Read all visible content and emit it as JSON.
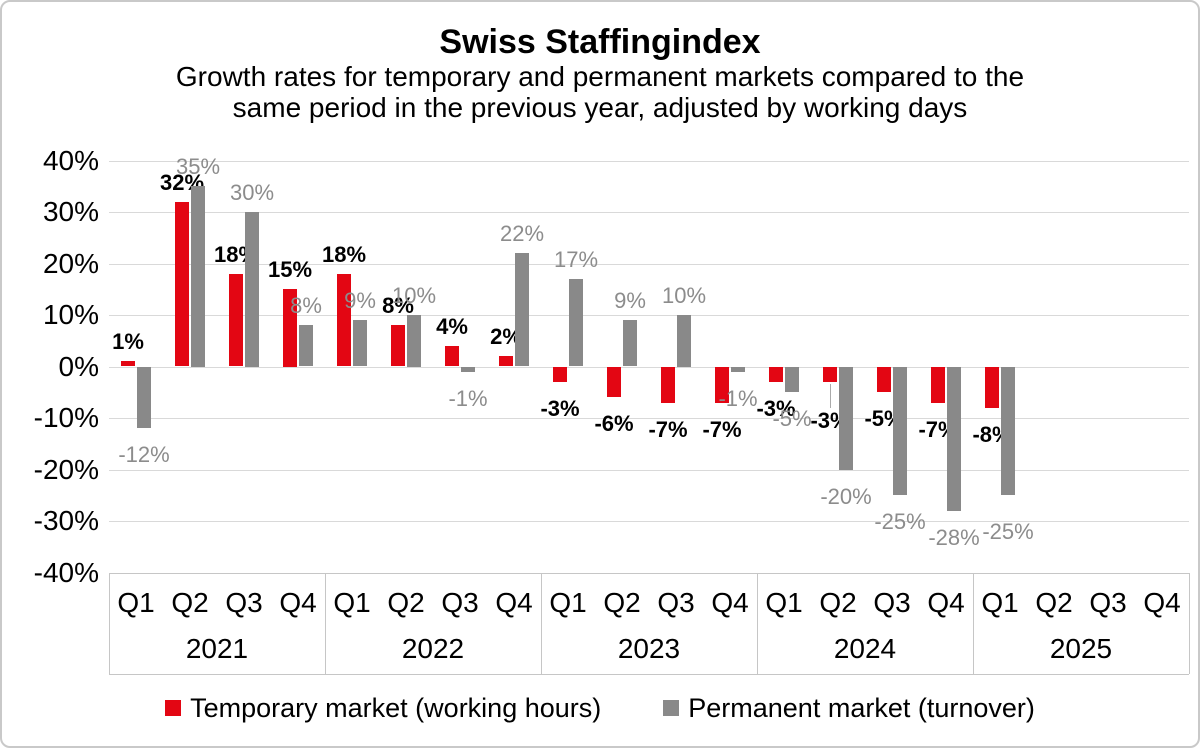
{
  "title": "Swiss Staffingindex",
  "subtitle_lines": [
    "Growth rates for temporary and permanent markets compared to the",
    "same period in the previous year, adjusted by working days"
  ],
  "colors": {
    "temporary": "#E30613",
    "permanent": "#898989",
    "temporary_label": "#000000",
    "permanent_label": "#8C8C8C",
    "gridline": "#D9D9D9",
    "axis_line": "#C6C6C6",
    "frame_border": "#C9C9C9"
  },
  "y_axis": {
    "tick_labels": [
      "40%",
      "30%",
      "20%",
      "10%",
      "0%",
      "-10%",
      "-20%",
      "-30%",
      "-40%"
    ],
    "max": 40,
    "min": -40,
    "step": 10
  },
  "legend": {
    "items": [
      {
        "series": "temporary",
        "label": "Temporary market (working hours)"
      },
      {
        "series": "permanent",
        "label": "Permanent market (turnover)"
      }
    ]
  },
  "chart_data": {
    "type": "bar",
    "title": "Swiss Staffingindex",
    "unit": "%",
    "quarter_labels": [
      "Q1",
      "Q2",
      "Q3",
      "Q4"
    ],
    "series": [
      {
        "name": "Temporary market (working hours)",
        "color": "#E30613"
      },
      {
        "name": "Permanent market (turnover)",
        "color": "#898989"
      }
    ],
    "years": [
      {
        "year": "2021",
        "temporary": [
          1,
          32,
          18,
          15
        ],
        "permanent": [
          -12,
          35,
          30,
          8
        ]
      },
      {
        "year": "2022",
        "temporary": [
          18,
          8,
          4,
          2
        ],
        "permanent": [
          9,
          10,
          -1,
          22
        ]
      },
      {
        "year": "2023",
        "temporary": [
          -3,
          -6,
          -7,
          -7
        ],
        "permanent": [
          17,
          9,
          10,
          -1
        ]
      },
      {
        "year": "2024",
        "temporary": [
          -3,
          -3,
          -5,
          -7
        ],
        "permanent": [
          -5,
          -20,
          -25,
          -28
        ]
      },
      {
        "year": "2025",
        "temporary": [
          -8,
          null,
          null,
          null
        ],
        "permanent": [
          -25,
          null,
          null,
          null
        ]
      }
    ],
    "ylim": [
      -40,
      40
    ],
    "gridlines": true,
    "legend_position": "bottom",
    "label_format": "{value}%"
  }
}
